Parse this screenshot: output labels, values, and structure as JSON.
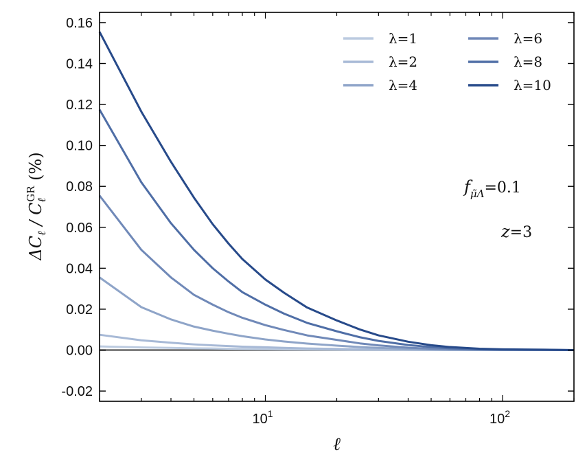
{
  "chart_data": {
    "type": "line",
    "title": "",
    "xlabel": "ℓ",
    "ylabel": "ΔC_ℓ / C_ℓ^GR (%)",
    "xscale": "log",
    "xlim": [
      2,
      200
    ],
    "ylim": [
      -0.025,
      0.165
    ],
    "grid": false,
    "legend_position": "top-right",
    "y_ticks": [
      "-0.02",
      "0.00",
      "0.02",
      "0.04",
      "0.06",
      "0.08",
      "0.10",
      "0.12",
      "0.14",
      "0.16"
    ],
    "y_tick_values": [
      -0.02,
      0.0,
      0.02,
      0.04,
      0.06,
      0.08,
      0.1,
      0.12,
      0.14,
      0.16
    ],
    "x_major_ticks": [
      10,
      100
    ],
    "x_major_labels": [
      {
        "base": "10",
        "exp": "1"
      },
      {
        "base": "10",
        "exp": "2"
      }
    ],
    "annotations": [
      {
        "id": "f",
        "main": "f",
        "sub": "μ̃Λ",
        "rest": "=0.1"
      },
      {
        "id": "z",
        "main": "z",
        "rest": "=3"
      }
    ],
    "x": [
      2,
      3,
      4,
      5,
      6,
      7,
      8,
      10,
      12,
      15,
      20,
      25,
      30,
      40,
      50,
      60,
      80,
      100,
      150,
      200
    ],
    "series": [
      {
        "name": "λ=1",
        "color": "#bccbe0",
        "values": [
          0.0018,
          0.0013,
          0.0011,
          0.0009,
          0.0008,
          0.0007,
          0.0006,
          0.0005,
          0.0004,
          0.0003,
          0.0002,
          0.00015,
          0.0001,
          6e-05,
          3e-05,
          2e-05,
          1e-05,
          0.0,
          0.0,
          0.0
        ]
      },
      {
        "name": "λ=2",
        "color": "#a7b9d6",
        "values": [
          0.0075,
          0.0048,
          0.0036,
          0.0028,
          0.0023,
          0.002,
          0.0017,
          0.0014,
          0.0011,
          0.0008,
          0.0006,
          0.0004,
          0.0003,
          0.0002,
          0.0001,
          6e-05,
          3e-05,
          2e-05,
          0.0,
          0.0
        ]
      },
      {
        "name": "λ=4",
        "color": "#8ea4c8",
        "values": [
          0.0355,
          0.021,
          0.015,
          0.0115,
          0.0095,
          0.008,
          0.0068,
          0.0052,
          0.0042,
          0.0032,
          0.0022,
          0.0015,
          0.0011,
          0.0006,
          0.0003,
          0.0002,
          0.0001,
          5e-05,
          0.0,
          0.0
        ]
      },
      {
        "name": "λ=6",
        "color": "#7089b8",
        "values": [
          0.0755,
          0.049,
          0.0355,
          0.027,
          0.0222,
          0.0185,
          0.0158,
          0.0122,
          0.0098,
          0.0072,
          0.005,
          0.0033,
          0.0023,
          0.0012,
          0.0007,
          0.0004,
          0.0002,
          0.0001,
          5e-05,
          0.0
        ]
      },
      {
        "name": "λ=8",
        "color": "#4f6ea6",
        "values": [
          0.1175,
          0.082,
          0.062,
          0.049,
          0.04,
          0.0335,
          0.0283,
          0.0222,
          0.0178,
          0.0133,
          0.0092,
          0.0063,
          0.0045,
          0.0025,
          0.0015,
          0.0009,
          0.0004,
          0.0002,
          0.0001,
          0.0
        ]
      },
      {
        "name": "λ=10",
        "color": "#274a8a",
        "values": [
          0.1555,
          0.1165,
          0.092,
          0.0745,
          0.0615,
          0.052,
          0.0445,
          0.0345,
          0.028,
          0.0208,
          0.0145,
          0.0101,
          0.0072,
          0.0041,
          0.0024,
          0.0015,
          0.0007,
          0.0004,
          0.0002,
          0.0
        ]
      }
    ],
    "baseline": {
      "y": 0.0,
      "color": "#666666"
    }
  }
}
